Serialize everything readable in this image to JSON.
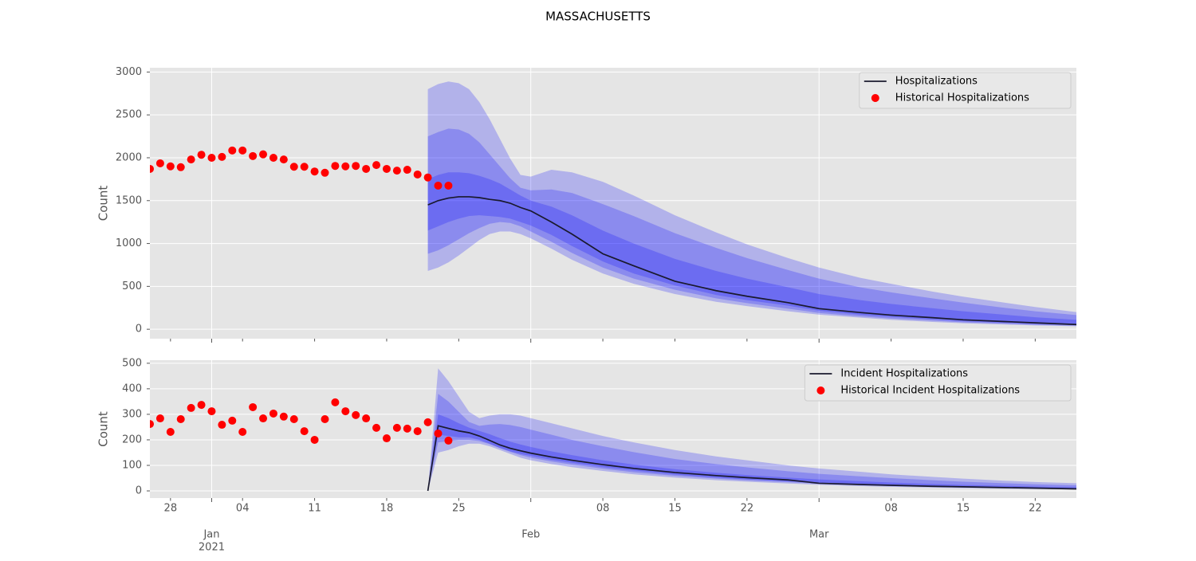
{
  "title": "MASSACHUSETTS",
  "chart_data": [
    {
      "type": "line",
      "ylabel": "Count",
      "legend": "upper right",
      "grid": true,
      "xlim": [
        "2020-12-26",
        "2021-03-26"
      ],
      "ylim": [
        -110,
        3050
      ],
      "yticks": [
        0,
        500,
        1000,
        1500,
        2000,
        2500,
        3000
      ],
      "series": [
        {
          "name": "Hospitalizations",
          "color": "#1a1a2e",
          "type": "line",
          "x": [
            "2021-01-22",
            "2021-01-23",
            "2021-01-24",
            "2021-01-25",
            "2021-01-26",
            "2021-01-27",
            "2021-01-28",
            "2021-01-29",
            "2021-01-30",
            "2021-01-31",
            "2021-02-01",
            "2021-02-03",
            "2021-02-05",
            "2021-02-08",
            "2021-02-11",
            "2021-02-15",
            "2021-02-19",
            "2021-02-22",
            "2021-02-26",
            "2021-03-01",
            "2021-03-05",
            "2021-03-08",
            "2021-03-12",
            "2021-03-15",
            "2021-03-19",
            "2021-03-22",
            "2021-03-26"
          ],
          "values": [
            1450,
            1500,
            1530,
            1545,
            1545,
            1535,
            1515,
            1500,
            1470,
            1420,
            1380,
            1250,
            1110,
            880,
            740,
            560,
            450,
            385,
            310,
            240,
            195,
            165,
            135,
            110,
            90,
            75,
            55
          ],
          "band_color": "#0000ff",
          "bands": [
            {
              "upper": [
                2800,
                2860,
                2890,
                2870,
                2800,
                2650,
                2450,
                2220,
                1990,
                1800,
                1780,
                1860,
                1830,
                1720,
                1560,
                1330,
                1130,
                990,
                830,
                720,
                600,
                530,
                440,
                380,
                310,
                260,
                200
              ],
              "lower": [
                680,
                720,
                780,
                860,
                950,
                1040,
                1110,
                1140,
                1140,
                1110,
                1060,
                940,
                810,
                650,
                530,
                410,
                320,
                270,
                210,
                170,
                135,
                110,
                85,
                70,
                55,
                45,
                35
              ]
            },
            {
              "upper": [
                2250,
                2300,
                2340,
                2330,
                2280,
                2180,
                2040,
                1900,
                1760,
                1650,
                1620,
                1630,
                1590,
                1460,
                1320,
                1120,
                950,
                830,
                690,
                590,
                490,
                430,
                360,
                310,
                250,
                210,
                165
              ],
              "lower": [
                880,
                920,
                980,
                1050,
                1120,
                1180,
                1230,
                1250,
                1240,
                1200,
                1140,
                1020,
                890,
                720,
                590,
                460,
                360,
                305,
                240,
                190,
                150,
                125,
                100,
                80,
                65,
                52,
                42
              ]
            },
            {
              "upper": [
                1750,
                1800,
                1830,
                1830,
                1820,
                1790,
                1750,
                1700,
                1630,
                1560,
                1500,
                1430,
                1330,
                1150,
                1000,
                820,
                680,
                590,
                490,
                410,
                340,
                295,
                245,
                210,
                170,
                140,
                110
              ],
              "lower": [
                1150,
                1200,
                1250,
                1290,
                1320,
                1330,
                1320,
                1310,
                1290,
                1250,
                1210,
                1100,
                970,
                790,
                650,
                510,
                400,
                340,
                275,
                215,
                170,
                145,
                115,
                95,
                75,
                62,
                48
              ]
            }
          ]
        },
        {
          "name": "Historical Hospitalizations",
          "color": "#ff0000",
          "type": "scatter",
          "x": [
            "2020-12-26",
            "2020-12-27",
            "2020-12-28",
            "2020-12-29",
            "2020-12-30",
            "2020-12-31",
            "2021-01-01",
            "2021-01-02",
            "2021-01-03",
            "2021-01-04",
            "2021-01-05",
            "2021-01-06",
            "2021-01-07",
            "2021-01-08",
            "2021-01-09",
            "2021-01-10",
            "2021-01-11",
            "2021-01-12",
            "2021-01-13",
            "2021-01-14",
            "2021-01-15",
            "2021-01-16",
            "2021-01-17",
            "2021-01-18",
            "2021-01-19",
            "2021-01-20",
            "2021-01-21",
            "2021-01-22",
            "2021-01-23",
            "2021-01-24"
          ],
          "values": [
            1870,
            1935,
            1900,
            1890,
            1980,
            2035,
            2000,
            2010,
            2085,
            2085,
            2020,
            2040,
            2000,
            1980,
            1895,
            1895,
            1840,
            1825,
            1905,
            1900,
            1905,
            1870,
            1915,
            1870,
            1850,
            1860,
            1805,
            1770,
            1675,
            1675
          ]
        }
      ]
    },
    {
      "type": "line",
      "ylabel": "Count",
      "legend": "upper right",
      "grid": true,
      "xlim": [
        "2020-12-26",
        "2021-03-26"
      ],
      "xticks": [
        {
          "value": "2021-01-01",
          "label": [
            "Jan",
            "2021"
          ]
        },
        {
          "value": "2021-02-01",
          "label": [
            "Feb"
          ]
        },
        {
          "value": "2021-03-01",
          "label": [
            "Mar"
          ]
        }
      ],
      "xticks_minor": [
        {
          "value": "2020-12-28",
          "label": "28"
        },
        {
          "value": "2021-01-04",
          "label": "04"
        },
        {
          "value": "2021-01-11",
          "label": "11"
        },
        {
          "value": "2021-01-18",
          "label": "18"
        },
        {
          "value": "2021-01-25",
          "label": "25"
        },
        {
          "value": "2021-02-08",
          "label": "08"
        },
        {
          "value": "2021-02-15",
          "label": "15"
        },
        {
          "value": "2021-02-22",
          "label": "22"
        },
        {
          "value": "2021-03-08",
          "label": "08"
        },
        {
          "value": "2021-03-15",
          "label": "15"
        },
        {
          "value": "2021-03-22",
          "label": "22"
        }
      ],
      "ylim": [
        -28,
        512
      ],
      "yticks": [
        0,
        100,
        200,
        300,
        400,
        500
      ],
      "series": [
        {
          "name": "Incident Hospitalizations",
          "color": "#1a1a2e",
          "type": "line",
          "x": [
            "2021-01-22",
            "2021-01-23",
            "2021-01-24",
            "2021-01-25",
            "2021-01-26",
            "2021-01-27",
            "2021-01-28",
            "2021-01-29",
            "2021-01-30",
            "2021-01-31",
            "2021-02-01",
            "2021-02-03",
            "2021-02-05",
            "2021-02-08",
            "2021-02-11",
            "2021-02-15",
            "2021-02-19",
            "2021-02-22",
            "2021-02-26",
            "2021-03-01",
            "2021-03-05",
            "2021-03-08",
            "2021-03-12",
            "2021-03-15",
            "2021-03-19",
            "2021-03-22",
            "2021-03-26"
          ],
          "values": [
            0,
            255,
            245,
            235,
            228,
            215,
            198,
            180,
            167,
            157,
            148,
            133,
            120,
            103,
            88,
            72,
            60,
            52,
            43,
            30,
            25,
            22,
            18,
            16,
            13,
            11,
            8
          ],
          "band_color": "#0000ff",
          "bands": [
            {
              "upper": [
                0,
                480,
                430,
                370,
                310,
                285,
                295,
                300,
                300,
                295,
                285,
                265,
                245,
                215,
                190,
                160,
                135,
                120,
                100,
                88,
                75,
                65,
                55,
                48,
                40,
                35,
                30
              ],
              "lower": [
                0,
                150,
                160,
                175,
                185,
                185,
                175,
                160,
                145,
                130,
                120,
                105,
                93,
                78,
                65,
                52,
                42,
                36,
                29,
                24,
                19,
                16,
                13,
                11,
                9,
                7,
                6
              ]
            },
            {
              "upper": [
                0,
                380,
                350,
                310,
                270,
                255,
                260,
                262,
                258,
                250,
                240,
                220,
                200,
                175,
                152,
                125,
                105,
                92,
                77,
                67,
                57,
                50,
                42,
                36,
                30,
                26,
                22
              ],
              "lower": [
                0,
                190,
                195,
                200,
                200,
                195,
                183,
                168,
                153,
                140,
                130,
                115,
                103,
                87,
                73,
                59,
                48,
                41,
                34,
                28,
                23,
                19,
                16,
                13,
                11,
                9,
                7
              ]
            },
            {
              "upper": [
                0,
                300,
                285,
                265,
                248,
                235,
                222,
                207,
                193,
                182,
                172,
                155,
                140,
                120,
                103,
                85,
                71,
                62,
                52,
                45,
                38,
                33,
                27,
                23,
                20,
                17,
                14
              ],
              "lower": [
                0,
                220,
                215,
                210,
                210,
                200,
                185,
                168,
                155,
                145,
                137,
                122,
                110,
                93,
                80,
                64,
                52,
                45,
                37,
                31,
                26,
                22,
                18,
                15,
                13,
                10,
                8
              ]
            }
          ]
        },
        {
          "name": "Historical Incident Hospitalizations",
          "color": "#ff0000",
          "type": "scatter",
          "x": [
            "2020-12-26",
            "2020-12-27",
            "2020-12-28",
            "2020-12-29",
            "2020-12-30",
            "2020-12-31",
            "2021-01-01",
            "2021-01-02",
            "2021-01-03",
            "2021-01-04",
            "2021-01-05",
            "2021-01-06",
            "2021-01-07",
            "2021-01-08",
            "2021-01-09",
            "2021-01-10",
            "2021-01-11",
            "2021-01-12",
            "2021-01-13",
            "2021-01-14",
            "2021-01-15",
            "2021-01-16",
            "2021-01-17",
            "2021-01-18",
            "2021-01-19",
            "2021-01-20",
            "2021-01-21",
            "2021-01-22",
            "2021-01-23",
            "2021-01-24"
          ],
          "values": [
            262,
            284,
            231,
            281,
            325,
            337,
            312,
            259,
            275,
            231,
            328,
            284,
            303,
            291,
            281,
            234,
            200,
            281,
            347,
            312,
            297,
            284,
            247,
            206,
            247,
            244,
            234,
            269,
            225,
            197
          ]
        }
      ]
    }
  ]
}
